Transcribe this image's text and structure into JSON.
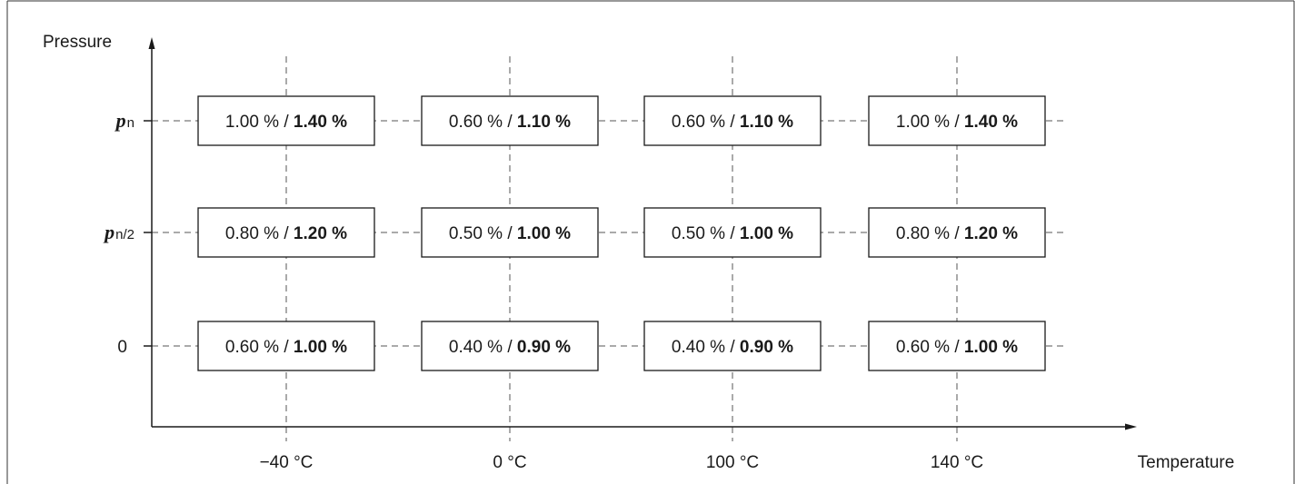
{
  "diagram": {
    "y_axis_title": "Pressure",
    "x_axis_title": "Temperature",
    "columns": [
      "−40 °C",
      "0 °C",
      "100 °C",
      "140 °C"
    ],
    "rows": [
      {
        "label_main": "p",
        "label_sub": "n",
        "cells": [
          {
            "normal": "1.00 % / ",
            "bold": "1.40 %"
          },
          {
            "normal": "0.60 % / ",
            "bold": "1.10 %"
          },
          {
            "normal": "0.60 % / ",
            "bold": "1.10 %"
          },
          {
            "normal": "1.00 % / ",
            "bold": "1.40 %"
          }
        ]
      },
      {
        "label_main": "p",
        "label_sub": "n/2",
        "cells": [
          {
            "normal": "0.80 % / ",
            "bold": "1.20 %"
          },
          {
            "normal": "0.50 % / ",
            "bold": "1.00 %"
          },
          {
            "normal": "0.50 % / ",
            "bold": "1.00 %"
          },
          {
            "normal": "0.80 % / ",
            "bold": "1.20 %"
          }
        ]
      },
      {
        "label_main": "0",
        "label_sub": "",
        "cells": [
          {
            "normal": "0.60 % / ",
            "bold": "1.00 %"
          },
          {
            "normal": "0.40 % / ",
            "bold": "0.90 %"
          },
          {
            "normal": "0.40 % / ",
            "bold": "0.90 %"
          },
          {
            "normal": "0.60 % / ",
            "bold": "1.00 %"
          }
        ]
      }
    ]
  }
}
